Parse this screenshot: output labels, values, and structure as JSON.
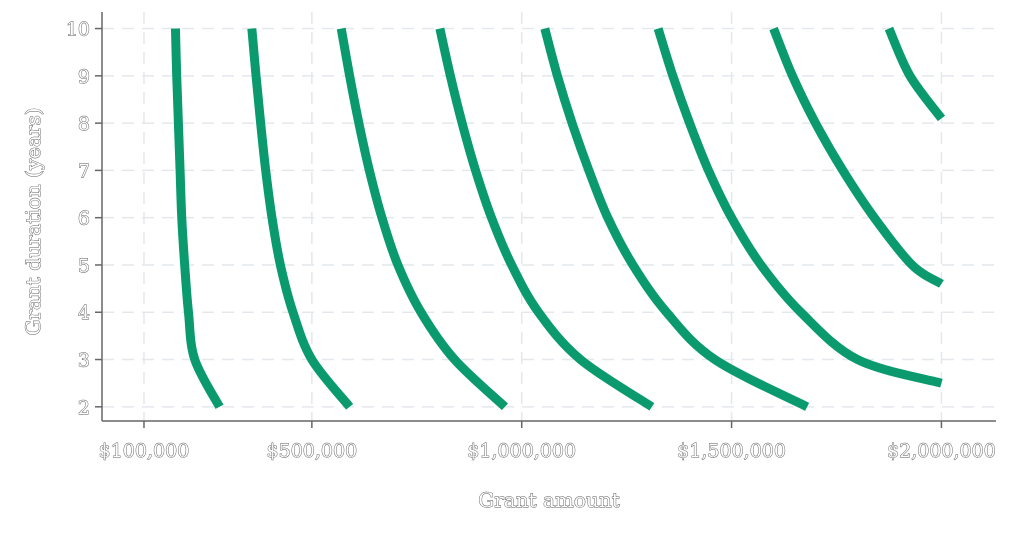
{
  "chart_data": {
    "type": "line",
    "title": "",
    "xlabel": "Grant amount",
    "ylabel": "Grant duration (years)",
    "xlim": [
      0,
      2130000
    ],
    "ylim": [
      1.7,
      10.35
    ],
    "x_ticks": [
      {
        "value": 100000,
        "label": "$100,000"
      },
      {
        "value": 500000,
        "label": "$500,000"
      },
      {
        "value": 1000000,
        "label": "$1,000,000"
      },
      {
        "value": 1500000,
        "label": "$1,500,000"
      },
      {
        "value": 2000000,
        "label": "$2,000,000"
      }
    ],
    "y_ticks": [
      {
        "value": 2,
        "label": "2"
      },
      {
        "value": 3,
        "label": "3"
      },
      {
        "value": 4,
        "label": "4"
      },
      {
        "value": 5,
        "label": "5"
      },
      {
        "value": 6,
        "label": "6"
      },
      {
        "value": 7,
        "label": "7"
      },
      {
        "value": 8,
        "label": "8"
      },
      {
        "value": 9,
        "label": "9"
      },
      {
        "value": 10,
        "label": "10"
      }
    ],
    "grid": true,
    "legend": "none",
    "color": "#0a9a6e",
    "series": [
      {
        "points": [
          [
            175000,
            10
          ],
          [
            178000,
            9
          ],
          [
            182000,
            8
          ],
          [
            186000,
            7
          ],
          [
            190000,
            6
          ],
          [
            197000,
            5
          ],
          [
            206000,
            4
          ],
          [
            221000,
            3
          ],
          [
            280000,
            2
          ]
        ]
      },
      {
        "points": [
          [
            357000,
            10
          ],
          [
            367000,
            9
          ],
          [
            378000,
            8
          ],
          [
            390000,
            7
          ],
          [
            405000,
            6
          ],
          [
            425000,
            5
          ],
          [
            455000,
            4
          ],
          [
            500000,
            3
          ],
          [
            590000,
            2
          ]
        ]
      },
      {
        "points": [
          [
            570000,
            10
          ],
          [
            590000,
            9
          ],
          [
            612000,
            8
          ],
          [
            637000,
            7
          ],
          [
            667000,
            6
          ],
          [
            705000,
            5
          ],
          [
            760000,
            4
          ],
          [
            840000,
            3
          ],
          [
            960000,
            2
          ]
        ]
      },
      {
        "points": [
          [
            805000,
            10
          ],
          [
            830000,
            9
          ],
          [
            858000,
            8
          ],
          [
            890000,
            7
          ],
          [
            928000,
            6
          ],
          [
            976000,
            5
          ],
          [
            1040000,
            4
          ],
          [
            1140000,
            3
          ],
          [
            1310000,
            2
          ]
        ]
      },
      {
        "points": [
          [
            1055000,
            10
          ],
          [
            1085000,
            9
          ],
          [
            1120000,
            8
          ],
          [
            1160000,
            7
          ],
          [
            1205000,
            6
          ],
          [
            1265000,
            5
          ],
          [
            1345000,
            4
          ],
          [
            1460000,
            3
          ],
          [
            1680000,
            2
          ]
        ]
      },
      {
        "points": [
          [
            1325000,
            10
          ],
          [
            1360000,
            9
          ],
          [
            1400000,
            8
          ],
          [
            1445000,
            7
          ],
          [
            1500000,
            6
          ],
          [
            1570000,
            5
          ],
          [
            1665000,
            4
          ],
          [
            1800000,
            3
          ],
          [
            2000000,
            2.5
          ]
        ]
      },
      {
        "points": [
          [
            1600000,
            10
          ],
          [
            1645000,
            9
          ],
          [
            1700000,
            8
          ],
          [
            1765000,
            7
          ],
          [
            1840000,
            6
          ],
          [
            1930000,
            5
          ],
          [
            2000000,
            4.6
          ]
        ]
      },
      {
        "points": [
          [
            1875000,
            10
          ],
          [
            1925000,
            9
          ],
          [
            2000000,
            8.1
          ]
        ]
      }
    ]
  }
}
